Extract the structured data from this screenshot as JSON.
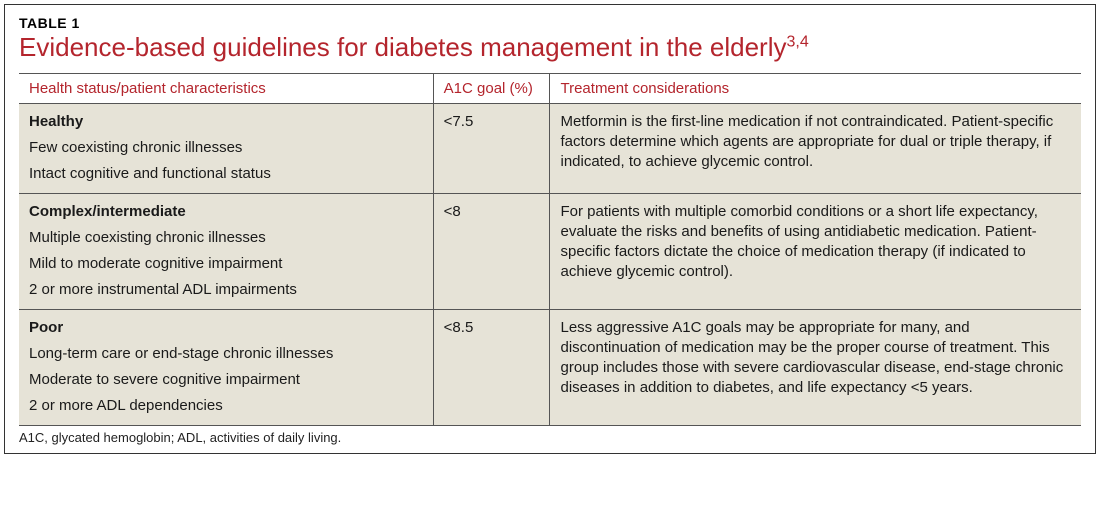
{
  "colors": {
    "accent": "#b4252d",
    "row_bg": "#e6e3d7",
    "border": "#555555",
    "text": "#1a1a1a"
  },
  "table_label": "TABLE 1",
  "title_main": "Evidence-based guidelines for diabetes management in the elderly",
  "title_sup": "3,4",
  "columns": {
    "status": "Health status/patient characteristics",
    "a1c": "A1C goal (%)",
    "treatment": "Treatment considerations"
  },
  "rows": [
    {
      "status_head": "Healthy",
      "status_lines": [
        "Few coexisting chronic illnesses",
        "Intact cognitive and functional status"
      ],
      "a1c": "<7.5",
      "treatment": "Metformin is the first-line medication if not contraindicated. Patient-specific factors determine which agents are appropriate for dual or triple therapy, if indicated, to achieve glycemic control."
    },
    {
      "status_head": "Complex/intermediate",
      "status_lines": [
        "Multiple coexisting chronic illnesses",
        "Mild to moderate cognitive impairment",
        "2 or more instrumental ADL impairments"
      ],
      "a1c": "<8",
      "treatment": "For patients with multiple comorbid conditions or a short life expectancy, evaluate the risks and benefits of using antidiabetic medication. Patient-specific factors dictate the choice of medication therapy (if indicated to achieve glycemic control)."
    },
    {
      "status_head": "Poor",
      "status_lines": [
        "Long-term care or end-stage chronic illnesses",
        "Moderate to severe cognitive impairment",
        "2 or more ADL dependencies"
      ],
      "a1c": "<8.5",
      "treatment": "Less aggressive A1C goals may be appropriate for many, and discontinuation of medication may be the proper course of treatment. This group includes those with severe cardiovascular disease, end-stage chronic diseases in addition to diabetes, and life expectancy <5 years."
    }
  ],
  "footnote": "A1C, glycated hemoglobin; ADL, activities of daily living."
}
